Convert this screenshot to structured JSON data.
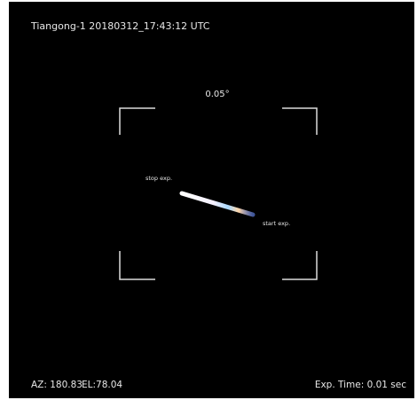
{
  "header": {
    "title": "Tiangong-1 20180312_17:43:12 UTC"
  },
  "field": {
    "scale_label": "0.05°"
  },
  "annotations": {
    "stop": "stop exp.",
    "start": "start exp."
  },
  "footer": {
    "azimuth": "AZ: 180.83",
    "elevation": "EL:78.04",
    "exposure": "Exp. Time: 0.01 sec"
  }
}
